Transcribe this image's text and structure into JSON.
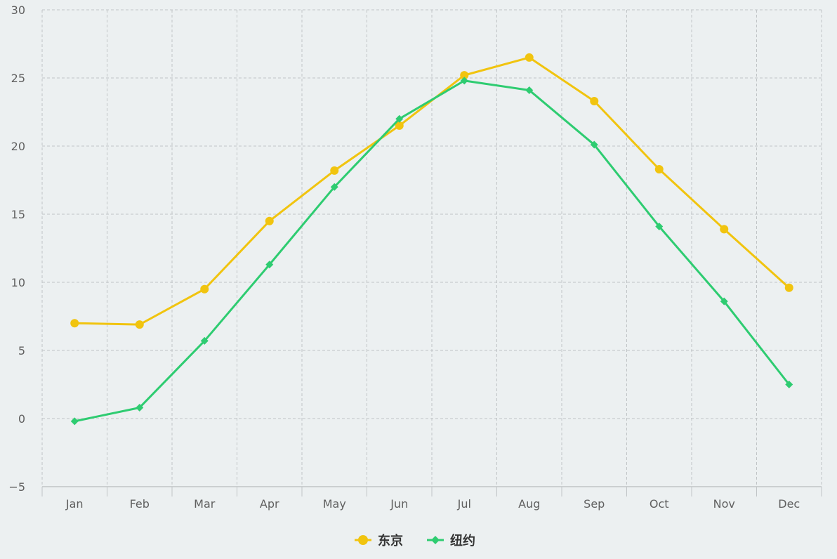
{
  "chart_data": {
    "type": "line",
    "x": [
      "Jan",
      "Feb",
      "Mar",
      "Apr",
      "May",
      "Jun",
      "Jul",
      "Aug",
      "Sep",
      "Oct",
      "Nov",
      "Dec"
    ],
    "ylim": [
      -5,
      30
    ],
    "yticks": [
      -5,
      0,
      5,
      10,
      15,
      20,
      25,
      30
    ],
    "grid": true,
    "grid_style": "dashed",
    "legend_position": "bottom-center",
    "background": "#ecf0f1",
    "series": [
      {
        "name": "东京",
        "color": "#f1c40f",
        "marker": "circle",
        "values": [
          7.0,
          6.9,
          9.5,
          14.5,
          18.2,
          21.5,
          25.2,
          26.5,
          23.3,
          18.3,
          13.9,
          9.6
        ]
      },
      {
        "name": "纽约",
        "color": "#2ecc71",
        "marker": "diamond",
        "values": [
          -0.2,
          0.8,
          5.7,
          11.3,
          17.0,
          22.0,
          24.8,
          24.1,
          20.1,
          14.1,
          8.6,
          2.5
        ]
      }
    ]
  }
}
